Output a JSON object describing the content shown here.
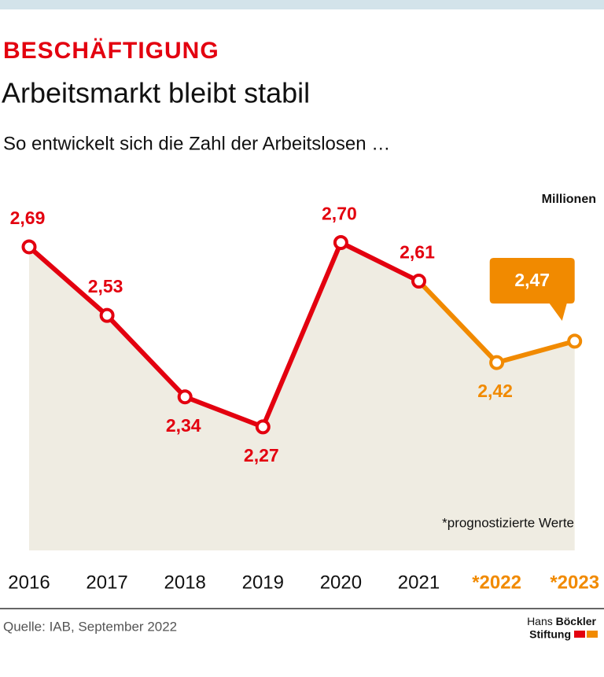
{
  "chart_data": {
    "type": "line",
    "kicker": "BESCHÄFTIGUNG",
    "title": "Arbeitsmarkt bleibt stabil",
    "subtitle": "So entwickelt sich die Zahl der Arbeitslosen …",
    "unit": "Millionen",
    "note": "*prognostizierte Werte",
    "source": "Quelle: IAB, September 2022",
    "logo": [
      "Hans",
      "Böckler",
      "Stiftung"
    ],
    "categories": [
      "2016",
      "2017",
      "2018",
      "2019",
      "2020",
      "2021",
      "*2022",
      "*2023"
    ],
    "values": [
      2.69,
      2.53,
      2.34,
      2.27,
      2.7,
      2.61,
      2.42,
      2.47
    ],
    "value_labels": [
      "2,69",
      "2,53",
      "2,34",
      "2,27",
      "2,70",
      "2,61",
      "2,42",
      "2,47"
    ],
    "colors": [
      "#e3000f",
      "#e3000f",
      "#e3000f",
      "#e3000f",
      "#e3000f",
      "#e3000f",
      "#f18a00",
      "#f18a00"
    ],
    "area_color": "#efece2",
    "ylim": [
      2.0,
      2.8
    ]
  }
}
